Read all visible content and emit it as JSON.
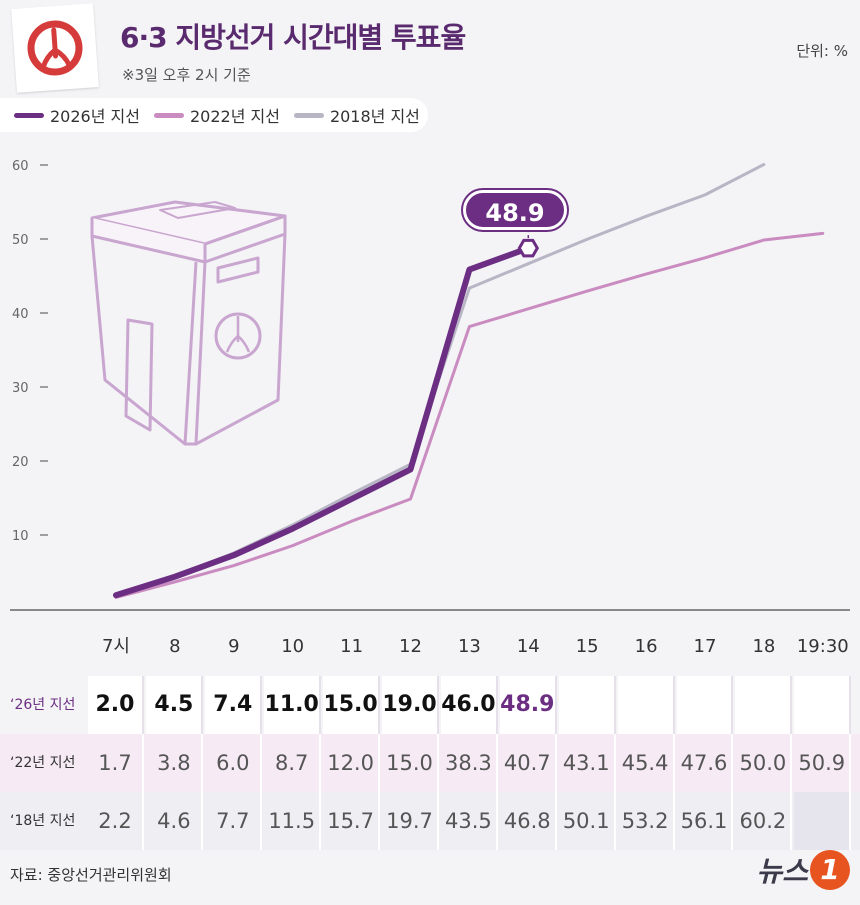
{
  "header": {
    "title": "6·3 지방선거 시간대별 투표율",
    "subtitle": "※3일 오후 2시 기준",
    "unit": "단위: %"
  },
  "colors": {
    "s2026": "#6b2e82",
    "s2022": "#c98bc0",
    "s2018": "#b8b5c4"
  },
  "chart_data": {
    "type": "line",
    "categories": [
      "7시",
      "8",
      "9",
      "10",
      "11",
      "12",
      "13",
      "14",
      "15",
      "16",
      "17",
      "18",
      "19:30"
    ],
    "ylim": [
      0,
      60
    ],
    "yticks": [
      "10",
      "20",
      "30",
      "40",
      "50",
      "60"
    ],
    "series": [
      {
        "name": "2026년 지선",
        "values": [
          2.0,
          4.5,
          7.4,
          11.0,
          15.0,
          19.0,
          46.0,
          48.9,
          null,
          null,
          null,
          null,
          null
        ]
      },
      {
        "name": "2022년 지선",
        "values": [
          1.7,
          3.8,
          6.0,
          8.7,
          12.0,
          15.0,
          38.3,
          40.7,
          43.1,
          45.4,
          47.6,
          50.0,
          50.9
        ]
      },
      {
        "name": "2018년 지선",
        "values": [
          2.2,
          4.6,
          7.7,
          11.5,
          15.7,
          19.7,
          43.5,
          46.8,
          50.1,
          53.2,
          56.1,
          60.2,
          null
        ]
      }
    ],
    "callout": "48.9"
  },
  "table": {
    "rows": [
      {
        "label": "‘26년 지선",
        "cells": [
          "2.0",
          "4.5",
          "7.4",
          "11.0",
          "15.0",
          "19.0",
          "46.0",
          "48.9",
          "",
          "",
          "",
          "",
          ""
        ]
      },
      {
        "label": "‘22년 지선",
        "cells": [
          "1.7",
          "3.8",
          "6.0",
          "8.7",
          "12.0",
          "15.0",
          "38.3",
          "40.7",
          "43.1",
          "45.4",
          "47.6",
          "50.0",
          "50.9"
        ]
      },
      {
        "label": "‘18년 지선",
        "cells": [
          "2.2",
          "4.6",
          "7.7",
          "11.5",
          "15.7",
          "19.7",
          "43.5",
          "46.8",
          "50.1",
          "53.2",
          "56.1",
          "60.2",
          ""
        ]
      }
    ]
  },
  "footer": {
    "source": "자료: 중앙선거관리위원회",
    "brand": "뉴스",
    "brand_badge": "1"
  }
}
